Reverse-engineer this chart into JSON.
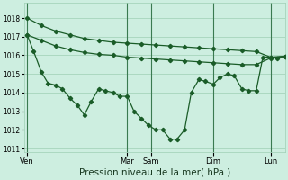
{
  "background_color": "#cdeee0",
  "grid_color": "#9ecfb4",
  "line_color": "#1a5c28",
  "xlabel": "Pression niveau de la mer( hPa )",
  "xlabel_fontsize": 7.5,
  "ylim": [
    1010.8,
    1018.8
  ],
  "yticks": [
    1011,
    1012,
    1013,
    1014,
    1015,
    1016,
    1017,
    1018
  ],
  "day_labels": [
    "Ven",
    "Mar",
    "Sam",
    "Dim",
    "Lun"
  ],
  "day_positions": [
    0.0,
    10.5,
    13.0,
    19.5,
    25.5
  ],
  "xlim": [
    -0.3,
    27
  ],
  "line1_x": [
    0,
    1.5,
    3.0,
    4.5,
    6.0,
    7.5,
    9.0,
    10.5,
    12.0,
    13.5,
    15.0,
    16.5,
    18.0,
    19.5,
    21.0,
    22.5,
    24.0,
    25.5,
    27.0
  ],
  "line1_y": [
    1018.0,
    1017.6,
    1017.3,
    1017.1,
    1016.9,
    1016.8,
    1016.7,
    1016.65,
    1016.6,
    1016.55,
    1016.5,
    1016.45,
    1016.4,
    1016.35,
    1016.3,
    1016.25,
    1016.2,
    1015.9,
    1015.95
  ],
  "line2_x": [
    0,
    1.5,
    3.0,
    4.5,
    6.0,
    7.5,
    9.0,
    10.5,
    12.0,
    13.5,
    15.0,
    16.5,
    18.0,
    19.5,
    21.0,
    22.5,
    24.0,
    25.5,
    27.0
  ],
  "line2_y": [
    1017.1,
    1016.8,
    1016.5,
    1016.3,
    1016.15,
    1016.05,
    1016.0,
    1015.9,
    1015.85,
    1015.8,
    1015.75,
    1015.7,
    1015.65,
    1015.6,
    1015.55,
    1015.5,
    1015.5,
    1015.85,
    1015.95
  ],
  "line3_x": [
    0,
    0.7,
    1.5,
    2.2,
    3.0,
    3.7,
    4.5,
    5.3,
    6.0,
    6.7,
    7.5,
    8.2,
    9.0,
    9.7,
    10.5,
    11.2,
    12.0,
    12.7,
    13.5,
    14.2,
    15.0,
    15.7,
    16.5,
    17.2,
    18.0,
    18.7,
    19.5,
    20.2,
    21.0,
    21.7,
    22.5,
    23.2,
    24.0,
    24.7,
    25.5,
    26.2,
    27.0
  ],
  "line3_y": [
    1017.1,
    1016.2,
    1015.1,
    1014.5,
    1014.4,
    1014.2,
    1013.7,
    1013.3,
    1012.8,
    1013.5,
    1014.2,
    1014.1,
    1014.0,
    1013.8,
    1013.8,
    1013.0,
    1012.6,
    1012.25,
    1012.0,
    1012.0,
    1011.5,
    1011.5,
    1012.0,
    1014.0,
    1014.7,
    1014.6,
    1014.45,
    1014.8,
    1015.0,
    1014.9,
    1014.2,
    1014.1,
    1014.1,
    1015.9,
    1015.9,
    1015.85,
    1015.95
  ]
}
